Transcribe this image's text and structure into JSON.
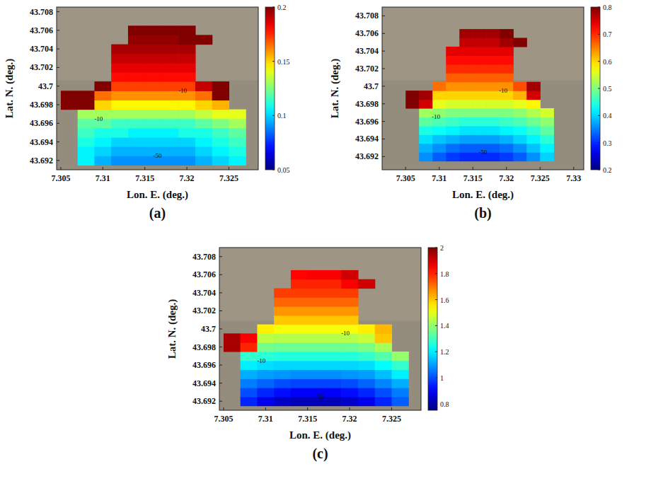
{
  "chart_data": [
    {
      "type": "heatmap",
      "label": "(a)",
      "x_label": "Lon. E. (deg.)",
      "y_label": "Lat. N. (deg.)",
      "xlim": [
        7.3045,
        7.3285
      ],
      "ylim": [
        43.691,
        43.7085
      ],
      "xticks": [
        7.305,
        7.31,
        7.315,
        7.32,
        7.325
      ],
      "yticks": [
        43.692,
        43.694,
        43.696,
        43.698,
        43.7,
        43.702,
        43.704,
        43.706,
        43.708
      ],
      "colorbar_lim": [
        0.05,
        0.2
      ],
      "colorbar_ticks": [
        0.05,
        0.1,
        0.15,
        0.2
      ],
      "x": [
        7.306,
        7.308,
        7.31,
        7.312,
        7.314,
        7.316,
        7.318,
        7.32,
        7.322,
        7.324,
        7.326
      ],
      "y": [
        43.692,
        43.693,
        43.694,
        43.695,
        43.696,
        43.697,
        43.698,
        43.699,
        43.7,
        43.701,
        43.702,
        43.703,
        43.704,
        43.705,
        43.706
      ],
      "values": [
        [
          null,
          0.105,
          0.095,
          0.09,
          0.09,
          0.09,
          0.09,
          0.09,
          0.095,
          0.1,
          0.105
        ],
        [
          null,
          0.105,
          0.1,
          0.095,
          0.095,
          0.095,
          0.095,
          0.095,
          0.1,
          0.105,
          0.11
        ],
        [
          null,
          0.11,
          0.105,
          0.1,
          0.1,
          0.1,
          0.1,
          0.1,
          0.105,
          0.11,
          0.115
        ],
        [
          null,
          0.115,
          0.11,
          0.11,
          0.105,
          0.105,
          0.105,
          0.11,
          0.11,
          0.115,
          0.12
        ],
        [
          null,
          0.12,
          0.12,
          0.115,
          0.115,
          0.115,
          0.115,
          0.115,
          0.12,
          0.125,
          0.13
        ],
        [
          null,
          0.13,
          0.13,
          0.13,
          0.13,
          0.13,
          0.13,
          0.13,
          0.135,
          0.14,
          0.14
        ],
        [
          0.2,
          0.2,
          0.15,
          0.145,
          0.145,
          0.145,
          0.145,
          0.145,
          0.15,
          0.155,
          null
        ],
        [
          0.2,
          0.2,
          0.165,
          0.16,
          0.16,
          0.16,
          0.16,
          0.16,
          0.165,
          0.2,
          null
        ],
        [
          null,
          null,
          0.2,
          0.172,
          0.172,
          0.172,
          0.172,
          0.172,
          0.19,
          0.2,
          null
        ],
        [
          null,
          null,
          null,
          0.18,
          0.18,
          0.18,
          0.18,
          0.18,
          null,
          null,
          null
        ],
        [
          null,
          null,
          null,
          0.185,
          0.185,
          0.185,
          0.185,
          0.185,
          null,
          null,
          null
        ],
        [
          null,
          null,
          null,
          0.19,
          0.19,
          0.19,
          0.19,
          0.19,
          null,
          null,
          null
        ],
        [
          null,
          null,
          null,
          0.194,
          0.194,
          0.194,
          0.194,
          0.194,
          null,
          null,
          null
        ],
        [
          null,
          null,
          null,
          null,
          0.197,
          0.197,
          0.197,
          0.2,
          0.2,
          null,
          null
        ],
        [
          null,
          null,
          null,
          null,
          0.2,
          0.2,
          0.2,
          0.2,
          null,
          null,
          null
        ]
      ],
      "annotations": [
        {
          "text": "-10",
          "x": 7.3095,
          "y": 43.6965
        },
        {
          "text": "-10",
          "x": 7.3195,
          "y": 43.6995
        },
        {
          "text": "-50",
          "x": 7.3165,
          "y": 43.6925
        }
      ]
    },
    {
      "type": "heatmap",
      "label": "(b)",
      "x_label": "Lon. E. (deg.)",
      "y_label": "Lat. N. (deg.)",
      "xlim": [
        7.3015,
        7.3315
      ],
      "ylim": [
        43.6905,
        43.709
      ],
      "xticks": [
        7.305,
        7.31,
        7.315,
        7.32,
        7.325,
        7.33
      ],
      "yticks": [
        43.692,
        43.694,
        43.696,
        43.698,
        43.7,
        43.702,
        43.704,
        43.706,
        43.708
      ],
      "colorbar_lim": [
        0.2,
        0.8
      ],
      "colorbar_ticks": [
        0.2,
        0.3,
        0.4,
        0.5,
        0.6,
        0.7,
        0.8
      ],
      "x": [
        7.306,
        7.308,
        7.31,
        7.312,
        7.314,
        7.316,
        7.318,
        7.32,
        7.322,
        7.324,
        7.326
      ],
      "y": [
        43.692,
        43.693,
        43.694,
        43.695,
        43.696,
        43.697,
        43.698,
        43.699,
        43.7,
        43.701,
        43.702,
        43.703,
        43.704,
        43.705,
        43.706
      ],
      "values": [
        [
          null,
          0.36,
          0.33,
          0.31,
          0.3,
          0.3,
          0.3,
          0.31,
          0.33,
          0.36,
          0.4
        ],
        [
          null,
          0.38,
          0.36,
          0.34,
          0.33,
          0.33,
          0.33,
          0.34,
          0.36,
          0.39,
          0.42
        ],
        [
          null,
          0.41,
          0.39,
          0.38,
          0.37,
          0.37,
          0.37,
          0.38,
          0.4,
          0.42,
          0.45
        ],
        [
          null,
          0.44,
          0.43,
          0.42,
          0.41,
          0.41,
          0.41,
          0.42,
          0.43,
          0.45,
          0.48
        ],
        [
          null,
          0.48,
          0.47,
          0.46,
          0.45,
          0.45,
          0.45,
          0.46,
          0.47,
          0.49,
          0.51
        ],
        [
          null,
          0.52,
          0.51,
          0.5,
          0.5,
          0.5,
          0.5,
          0.5,
          0.51,
          0.53,
          0.55
        ],
        [
          0.8,
          0.75,
          0.56,
          0.55,
          0.55,
          0.55,
          0.55,
          0.55,
          0.56,
          0.58,
          null
        ],
        [
          0.8,
          0.78,
          0.6,
          0.6,
          0.6,
          0.6,
          0.6,
          0.6,
          0.62,
          0.75,
          null
        ],
        [
          null,
          null,
          0.66,
          0.64,
          0.64,
          0.64,
          0.64,
          0.64,
          0.68,
          0.78,
          null
        ],
        [
          null,
          null,
          null,
          0.67,
          0.67,
          0.67,
          0.67,
          0.67,
          null,
          null,
          null
        ],
        [
          null,
          null,
          null,
          0.7,
          0.7,
          0.7,
          0.7,
          0.7,
          null,
          null,
          null
        ],
        [
          null,
          null,
          null,
          0.72,
          0.72,
          0.72,
          0.72,
          0.72,
          null,
          null,
          null
        ],
        [
          null,
          null,
          null,
          0.74,
          0.74,
          0.74,
          0.74,
          0.74,
          null,
          null,
          null
        ],
        [
          null,
          null,
          null,
          null,
          0.76,
          0.76,
          0.76,
          0.78,
          0.8,
          null,
          null
        ],
        [
          null,
          null,
          null,
          null,
          0.78,
          0.78,
          0.78,
          0.8,
          null,
          null,
          null
        ]
      ],
      "annotations": [
        {
          "text": "-10",
          "x": 7.3095,
          "y": 43.6965
        },
        {
          "text": "-10",
          "x": 7.3195,
          "y": 43.6995
        },
        {
          "text": "-50",
          "x": 7.3165,
          "y": 43.6925
        }
      ]
    },
    {
      "type": "heatmap",
      "label": "(c)",
      "x_label": "Lon. E. (deg.)",
      "y_label": "Lat. N. (deg.)",
      "xlim": [
        7.3045,
        7.3285
      ],
      "ylim": [
        43.691,
        43.709
      ],
      "xticks": [
        7.305,
        7.31,
        7.315,
        7.32,
        7.325
      ],
      "yticks": [
        43.692,
        43.694,
        43.696,
        43.698,
        43.7,
        43.702,
        43.704,
        43.706,
        43.708
      ],
      "colorbar_lim": [
        0.75,
        2
      ],
      "colorbar_ticks": [
        0.8,
        1,
        1.2,
        1.4,
        1.6,
        1.8,
        2
      ],
      "x": [
        7.306,
        7.308,
        7.31,
        7.312,
        7.314,
        7.316,
        7.318,
        7.32,
        7.322,
        7.324,
        7.326
      ],
      "y": [
        43.692,
        43.693,
        43.694,
        43.695,
        43.696,
        43.697,
        43.698,
        43.699,
        43.7,
        43.701,
        43.702,
        43.703,
        43.704,
        43.705,
        43.706
      ],
      "values": [
        [
          null,
          0.95,
          0.88,
          0.84,
          0.82,
          0.82,
          0.82,
          0.84,
          0.88,
          0.95,
          1.02
        ],
        [
          null,
          1.0,
          0.95,
          0.92,
          0.9,
          0.9,
          0.9,
          0.92,
          0.95,
          1.0,
          1.06
        ],
        [
          null,
          1.06,
          1.03,
          1.0,
          0.99,
          0.99,
          0.99,
          1.0,
          1.03,
          1.07,
          1.12
        ],
        [
          null,
          1.12,
          1.1,
          1.09,
          1.08,
          1.08,
          1.08,
          1.09,
          1.1,
          1.14,
          1.2
        ],
        [
          null,
          1.2,
          1.18,
          1.17,
          1.17,
          1.17,
          1.17,
          1.17,
          1.18,
          1.22,
          1.28
        ],
        [
          null,
          1.28,
          1.27,
          1.26,
          1.26,
          1.26,
          1.26,
          1.26,
          1.28,
          1.32,
          1.4
        ],
        [
          1.95,
          1.8,
          1.36,
          1.35,
          1.35,
          1.35,
          1.35,
          1.35,
          1.37,
          1.42,
          null
        ],
        [
          1.95,
          1.85,
          1.45,
          1.44,
          1.44,
          1.44,
          1.44,
          1.44,
          1.46,
          1.6,
          null
        ],
        [
          null,
          null,
          1.55,
          1.52,
          1.52,
          1.52,
          1.52,
          1.52,
          1.55,
          1.62,
          null
        ],
        [
          null,
          null,
          null,
          1.6,
          1.6,
          1.6,
          1.6,
          1.6,
          null,
          null,
          null
        ],
        [
          null,
          null,
          null,
          1.66,
          1.66,
          1.66,
          1.66,
          1.66,
          null,
          null,
          null
        ],
        [
          null,
          null,
          null,
          1.72,
          1.72,
          1.72,
          1.72,
          1.72,
          null,
          null,
          null
        ],
        [
          null,
          null,
          null,
          1.77,
          1.77,
          1.77,
          1.77,
          1.77,
          null,
          null,
          null
        ],
        [
          null,
          null,
          null,
          null,
          1.8,
          1.8,
          1.8,
          1.85,
          1.9,
          null,
          null
        ],
        [
          null,
          null,
          null,
          null,
          1.84,
          1.85,
          1.85,
          1.9,
          null,
          null,
          null
        ]
      ],
      "annotations": [
        {
          "text": "-10",
          "x": 7.3095,
          "y": 43.6965
        },
        {
          "text": "-10",
          "x": 7.3195,
          "y": 43.6995
        },
        {
          "text": "-50",
          "x": 7.3165,
          "y": 43.6925
        }
      ]
    }
  ]
}
